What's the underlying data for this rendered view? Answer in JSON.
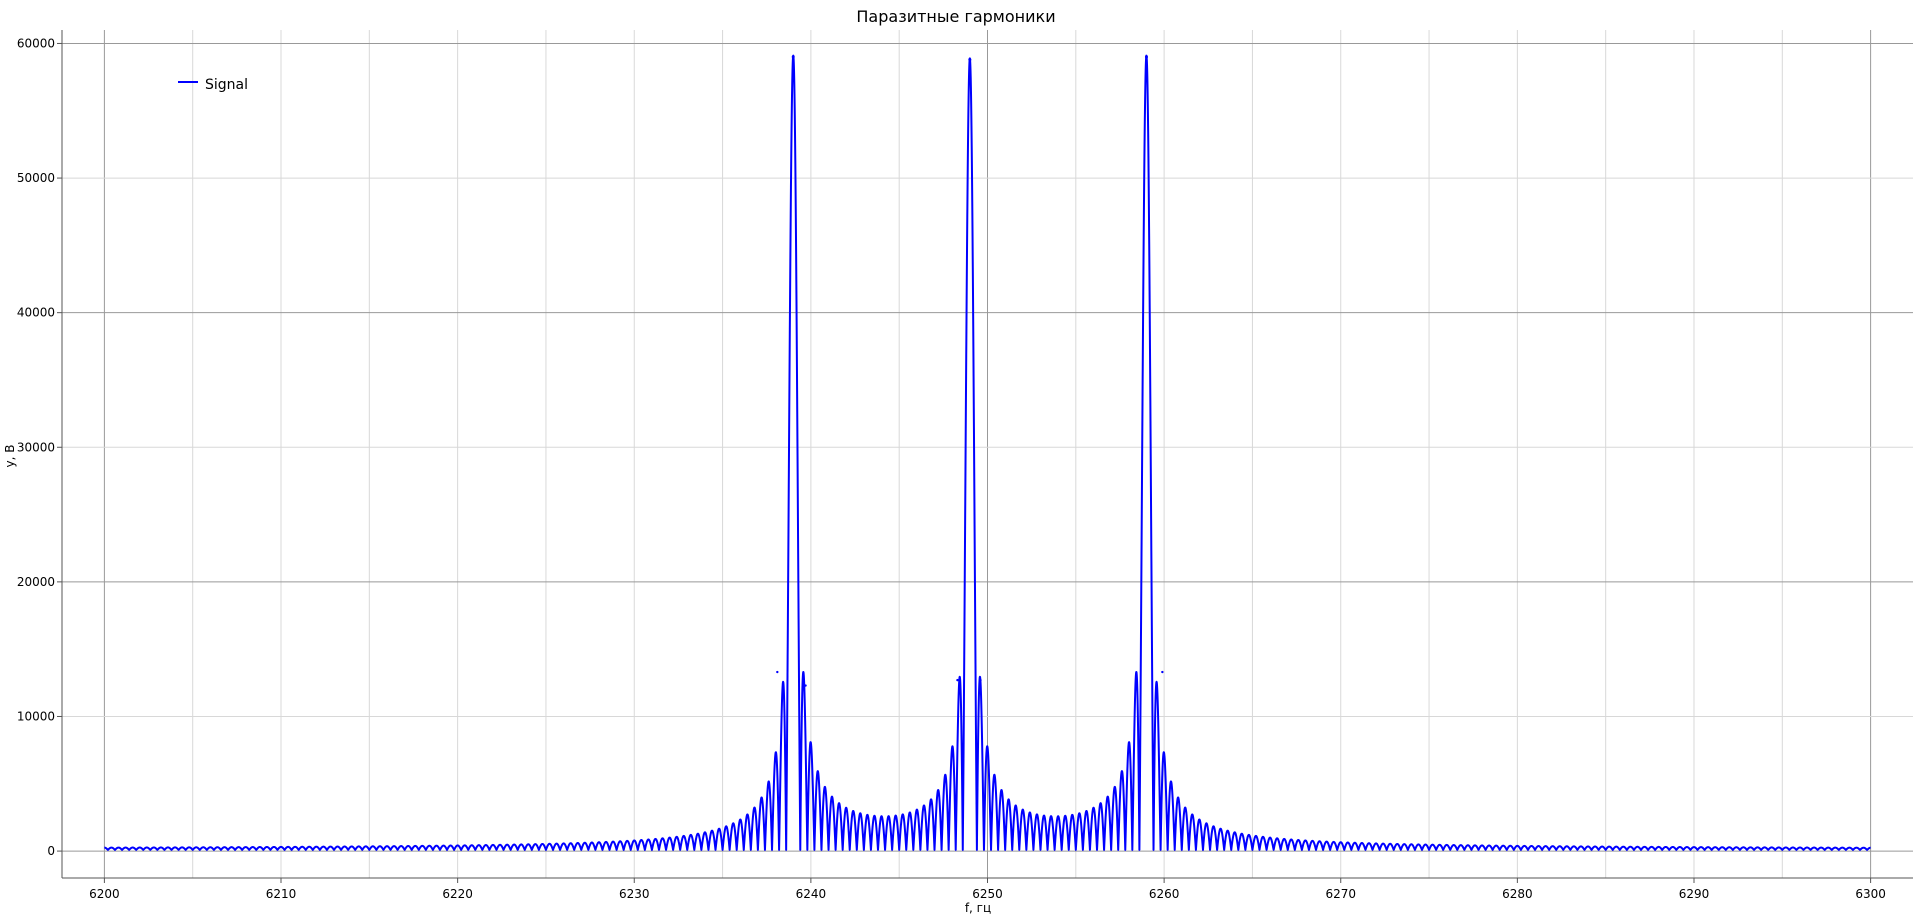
{
  "chart_data": {
    "type": "line",
    "title": "Паразитные гармоники",
    "xlabel": "f, гц",
    "ylabel": "y, B",
    "xlim": [
      6197.6,
      6302.4
    ],
    "ylim": [
      -2000,
      61000
    ],
    "x_ticks": [
      6200,
      6210,
      6220,
      6230,
      6240,
      6250,
      6260,
      6270,
      6280,
      6290,
      6300
    ],
    "y_ticks": [
      0,
      10000,
      20000,
      30000,
      40000,
      50000,
      60000
    ],
    "x_tick_labels": [
      "6200",
      "6210",
      "6220",
      "6230",
      "6240",
      "6250",
      "6260",
      "6270",
      "6280",
      "6290",
      "6300"
    ],
    "y_tick_labels": [
      "0",
      "10000",
      "20000",
      "30000",
      "40000",
      "50000",
      "60000"
    ],
    "grid": true,
    "legend": {
      "position": "top-left",
      "entries": [
        "Signal"
      ]
    },
    "series": [
      {
        "name": "Signal",
        "color": "#0000ff",
        "peaks": [
          {
            "x": 6239,
            "y": 59000
          },
          {
            "x": 6249,
            "y": 58800
          },
          {
            "x": 6259,
            "y": 59000
          }
        ],
        "sidelobe_pairs": [
          {
            "x": 6238.1,
            "y": 13300
          },
          {
            "x": 6239.7,
            "y": 12300
          },
          {
            "x": 6248.3,
            "y": 12700
          },
          {
            "x": 6249.6,
            "y": 12700
          },
          {
            "x": 6258.4,
            "y": 12300
          },
          {
            "x": 6259.9,
            "y": 13300
          }
        ],
        "x_range": [
          6200,
          6300
        ],
        "baseline_value": 300
      }
    ]
  }
}
